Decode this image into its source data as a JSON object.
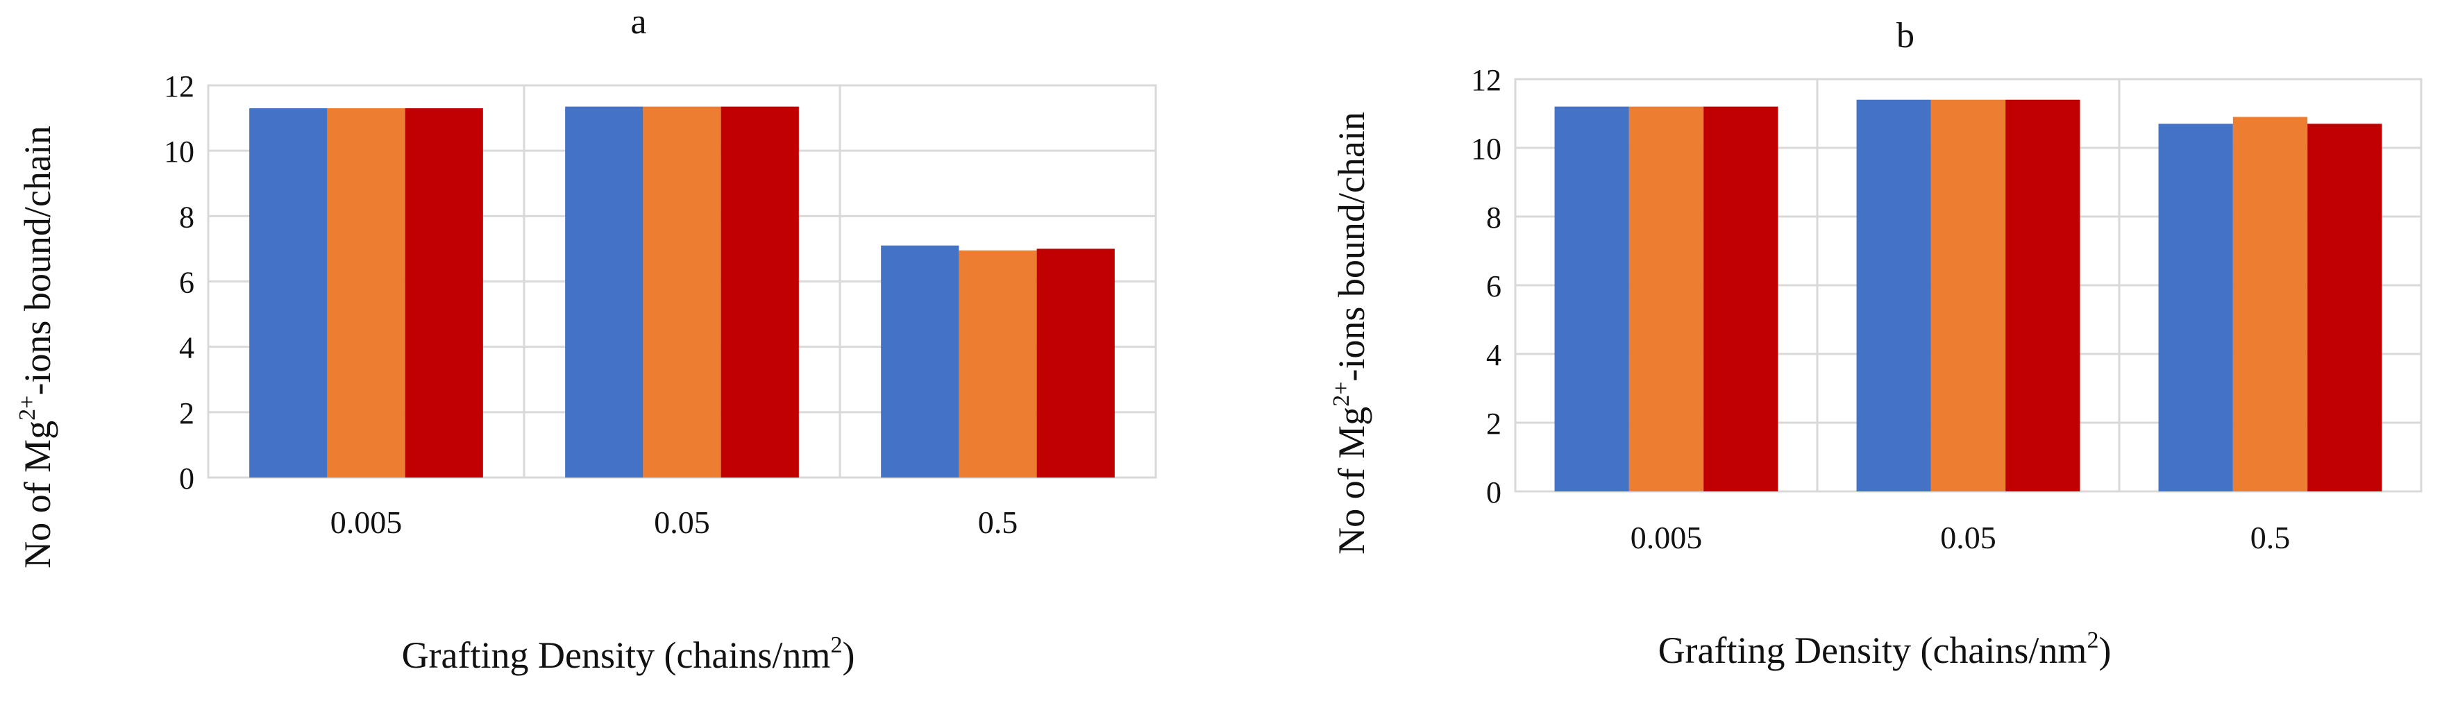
{
  "chart_data": [
    {
      "type": "bar",
      "title": "a",
      "xlabel": "Grafting Density (chains/nm2)",
      "xlabel_main": "Grafting Density (chains/nm",
      "xlabel_sup": "2",
      "xlabel_end": ")",
      "ylabel": "No of Mg2+-ions bound/chain",
      "ylabel_main": "No of Mg",
      "ylabel_sup": "2+",
      "ylabel_end": "-ions bound/chain",
      "categories": [
        "0.005",
        "0.05",
        "0.5"
      ],
      "series": [
        {
          "color": "#4472C4",
          "values": [
            11.3,
            11.35,
            7.1
          ]
        },
        {
          "color": "#ED7D31",
          "values": [
            11.3,
            11.35,
            6.95
          ]
        },
        {
          "color": "#C00000",
          "values": [
            11.3,
            11.35,
            7.0
          ]
        }
      ],
      "ylim": [
        0,
        12
      ],
      "yticks": [
        "0",
        "2",
        "4",
        "6",
        "8",
        "10",
        "12"
      ],
      "grid": true,
      "legend": "none"
    },
    {
      "type": "bar",
      "title": "b",
      "xlabel": "Grafting Density (chains/nm2)",
      "xlabel_main": "Grafting Density (chains/nm",
      "xlabel_sup": "2",
      "xlabel_end": ")",
      "ylabel": "No of Mg2+-ions bound/chain",
      "ylabel_main": "No of Mg",
      "ylabel_sup": "2+",
      "ylabel_end": "-ions bound/chain",
      "categories": [
        "0.005",
        "0.05",
        "0.5"
      ],
      "series": [
        {
          "color": "#4472C4",
          "values": [
            11.2,
            11.4,
            10.7
          ]
        },
        {
          "color": "#ED7D31",
          "values": [
            11.2,
            11.4,
            10.9
          ]
        },
        {
          "color": "#C00000",
          "values": [
            11.2,
            11.4,
            10.7
          ]
        }
      ],
      "ylim": [
        0,
        12
      ],
      "yticks": [
        "0",
        "2",
        "4",
        "6",
        "8",
        "10",
        "12"
      ],
      "grid": true,
      "legend": "none"
    }
  ]
}
